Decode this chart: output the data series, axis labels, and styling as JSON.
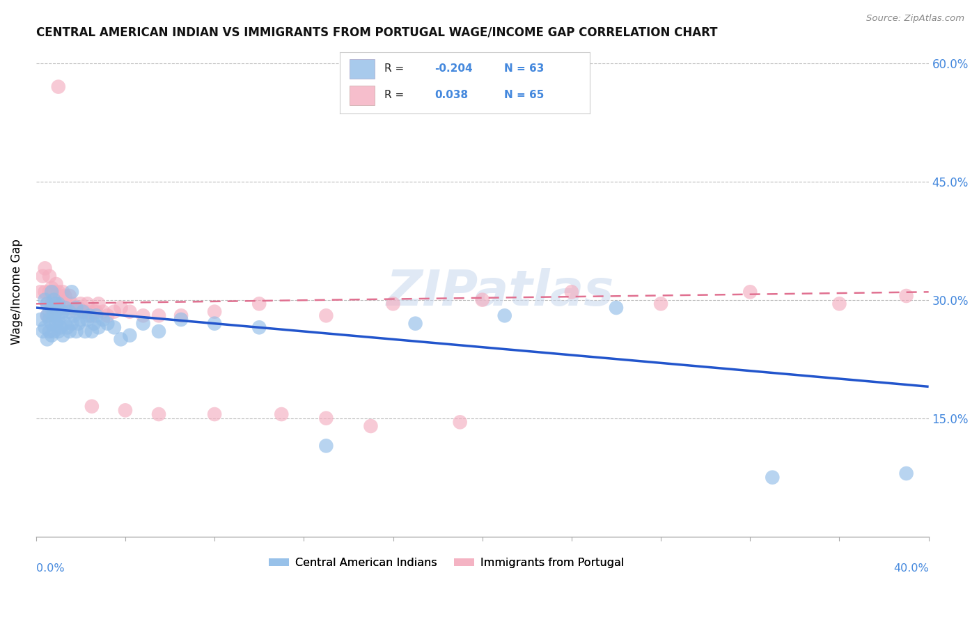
{
  "title": "CENTRAL AMERICAN INDIAN VS IMMIGRANTS FROM PORTUGAL WAGE/INCOME GAP CORRELATION CHART",
  "source": "Source: ZipAtlas.com",
  "ylabel": "Wage/Income Gap",
  "ylim": [
    0.0,
    0.62
  ],
  "xlim": [
    0.0,
    0.4
  ],
  "yticks": [
    0.15,
    0.3,
    0.45,
    0.6
  ],
  "ytick_labels": [
    "15.0%",
    "30.0%",
    "45.0%",
    "60.0%"
  ],
  "legend_label_blue": "Central American Indians",
  "legend_label_pink": "Immigrants from Portugal",
  "blue_color": "#92bde8",
  "pink_color": "#f4aec0",
  "blue_line_color": "#2255cc",
  "pink_line_color": "#e07090",
  "watermark": "ZIPatlas",
  "blue_R": -0.204,
  "blue_N": 63,
  "pink_R": 0.038,
  "pink_N": 65,
  "blue_scatter_x": [
    0.002,
    0.003,
    0.004,
    0.004,
    0.005,
    0.005,
    0.005,
    0.006,
    0.006,
    0.006,
    0.007,
    0.007,
    0.007,
    0.007,
    0.008,
    0.008,
    0.008,
    0.009,
    0.009,
    0.009,
    0.01,
    0.01,
    0.01,
    0.011,
    0.011,
    0.012,
    0.012,
    0.013,
    0.013,
    0.014,
    0.015,
    0.015,
    0.016,
    0.016,
    0.017,
    0.018,
    0.018,
    0.019,
    0.02,
    0.021,
    0.022,
    0.023,
    0.024,
    0.025,
    0.026,
    0.027,
    0.028,
    0.03,
    0.032,
    0.035,
    0.038,
    0.042,
    0.048,
    0.055,
    0.065,
    0.08,
    0.1,
    0.13,
    0.17,
    0.21,
    0.26,
    0.33,
    0.39
  ],
  "blue_scatter_y": [
    0.275,
    0.26,
    0.3,
    0.265,
    0.25,
    0.28,
    0.295,
    0.26,
    0.285,
    0.275,
    0.255,
    0.27,
    0.29,
    0.31,
    0.26,
    0.28,
    0.3,
    0.27,
    0.285,
    0.295,
    0.26,
    0.275,
    0.295,
    0.265,
    0.28,
    0.255,
    0.285,
    0.27,
    0.29,
    0.265,
    0.26,
    0.285,
    0.27,
    0.31,
    0.28,
    0.26,
    0.29,
    0.27,
    0.275,
    0.285,
    0.26,
    0.275,
    0.28,
    0.26,
    0.27,
    0.28,
    0.265,
    0.275,
    0.27,
    0.265,
    0.25,
    0.255,
    0.27,
    0.26,
    0.275,
    0.27,
    0.265,
    0.115,
    0.27,
    0.28,
    0.29,
    0.075,
    0.08
  ],
  "pink_scatter_x": [
    0.002,
    0.003,
    0.004,
    0.004,
    0.005,
    0.005,
    0.006,
    0.006,
    0.007,
    0.007,
    0.008,
    0.008,
    0.009,
    0.009,
    0.01,
    0.01,
    0.011,
    0.011,
    0.012,
    0.012,
    0.013,
    0.013,
    0.014,
    0.015,
    0.015,
    0.016,
    0.017,
    0.018,
    0.019,
    0.02,
    0.021,
    0.022,
    0.023,
    0.024,
    0.025,
    0.026,
    0.027,
    0.028,
    0.03,
    0.032,
    0.035,
    0.038,
    0.042,
    0.048,
    0.055,
    0.065,
    0.08,
    0.1,
    0.13,
    0.16,
    0.2,
    0.24,
    0.28,
    0.32,
    0.36,
    0.13,
    0.025,
    0.04,
    0.055,
    0.08,
    0.11,
    0.15,
    0.19,
    0.39,
    0.01
  ],
  "pink_scatter_y": [
    0.31,
    0.33,
    0.34,
    0.31,
    0.295,
    0.28,
    0.33,
    0.31,
    0.295,
    0.315,
    0.29,
    0.31,
    0.3,
    0.32,
    0.295,
    0.31,
    0.29,
    0.305,
    0.295,
    0.31,
    0.29,
    0.305,
    0.295,
    0.29,
    0.305,
    0.295,
    0.29,
    0.285,
    0.29,
    0.295,
    0.285,
    0.285,
    0.295,
    0.285,
    0.28,
    0.285,
    0.285,
    0.295,
    0.285,
    0.28,
    0.285,
    0.29,
    0.285,
    0.28,
    0.28,
    0.28,
    0.285,
    0.295,
    0.28,
    0.295,
    0.3,
    0.31,
    0.295,
    0.31,
    0.295,
    0.15,
    0.165,
    0.16,
    0.155,
    0.155,
    0.155,
    0.14,
    0.145,
    0.305,
    0.57
  ],
  "blue_line_x": [
    0.0,
    0.4
  ],
  "blue_line_y": [
    0.29,
    0.19
  ],
  "pink_line_x": [
    0.0,
    0.4
  ],
  "pink_line_y": [
    0.295,
    0.31
  ]
}
